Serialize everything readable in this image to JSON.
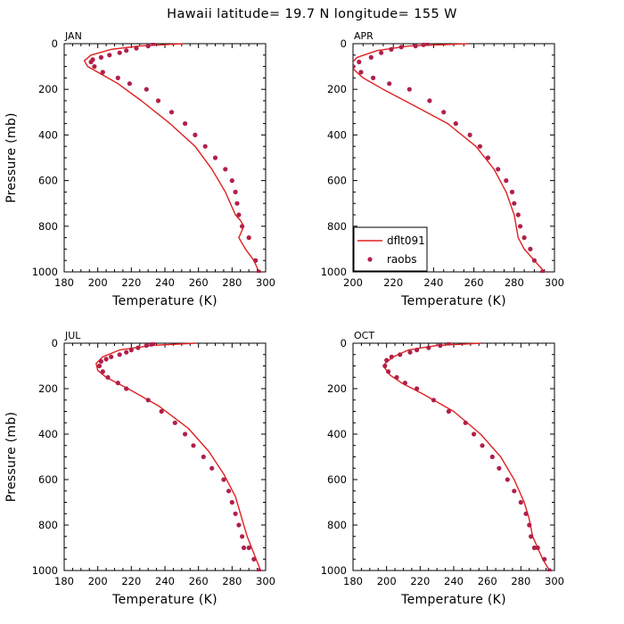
{
  "title": "Hawaii  latitude= 19.7 N longitude= 155 W",
  "colors": {
    "model_line": "#e02020",
    "raobs_marker": "#b0204a",
    "frame": "#000000"
  },
  "legend": {
    "items": [
      {
        "label": "dflt091",
        "kind": "line"
      },
      {
        "label": "raobs",
        "kind": "marker"
      }
    ],
    "panel": "APR",
    "placement": "bottom-left"
  },
  "chart_data": [
    {
      "type": "line",
      "panel": "JAN",
      "xlabel": "Temperature  (K)",
      "ylabel": "Pressure (mb)",
      "xlim": [
        180,
        300
      ],
      "ylim": [
        1000,
        0
      ],
      "xticks": [
        180,
        200,
        220,
        240,
        260,
        280,
        300
      ],
      "yticks": [
        0,
        200,
        400,
        600,
        800,
        1000
      ],
      "series": [
        {
          "name": "dflt091",
          "style": "line",
          "x": [
            251,
            225,
            208,
            196,
            192,
            194,
            200,
            212,
            226,
            243,
            258,
            268,
            276,
            282,
            285,
            287,
            284,
            288,
            293,
            296
          ],
          "y": [
            0,
            10,
            25,
            50,
            75,
            100,
            125,
            175,
            250,
            350,
            450,
            550,
            650,
            750,
            775,
            800,
            850,
            900,
            950,
            1000
          ]
        },
        {
          "name": "raobs",
          "style": "points",
          "x": [
            233,
            230,
            223,
            217,
            213,
            207,
            202,
            197,
            196,
            198,
            203,
            212,
            219,
            229,
            236,
            244,
            252,
            258,
            264,
            270,
            276,
            280,
            282,
            283,
            284,
            286,
            290,
            294,
            296
          ],
          "y": [
            0,
            10,
            20,
            30,
            40,
            50,
            60,
            70,
            80,
            100,
            125,
            150,
            175,
            200,
            250,
            300,
            350,
            400,
            450,
            500,
            550,
            600,
            650,
            700,
            750,
            800,
            850,
            950,
            1000
          ]
        }
      ]
    },
    {
      "type": "line",
      "panel": "APR",
      "xlabel": "Temperature  (K)",
      "ylabel": "",
      "xlim": [
        200,
        300
      ],
      "ylim": [
        1000,
        0
      ],
      "xticks": [
        200,
        220,
        240,
        260,
        280,
        300
      ],
      "yticks": [
        0,
        200,
        400,
        600,
        800,
        1000
      ],
      "series": [
        {
          "name": "dflt091",
          "style": "line",
          "x": [
            257,
            228,
            212,
            202,
            199,
            200,
            205,
            215,
            230,
            247,
            261,
            270,
            276,
            280,
            281,
            282,
            285,
            290,
            295
          ],
          "y": [
            0,
            10,
            30,
            60,
            90,
            110,
            150,
            200,
            270,
            350,
            450,
            550,
            650,
            750,
            800,
            850,
            900,
            950,
            1000
          ]
        },
        {
          "name": "raobs",
          "style": "points",
          "x": [
            237,
            235,
            231,
            224,
            219,
            214,
            209,
            203,
            200,
            204,
            210,
            218,
            228,
            238,
            245,
            251,
            258,
            263,
            267,
            272,
            276,
            279,
            280,
            282,
            283,
            285,
            288,
            290,
            294
          ],
          "y": [
            0,
            5,
            10,
            15,
            25,
            40,
            60,
            80,
            100,
            125,
            150,
            175,
            200,
            250,
            300,
            350,
            400,
            450,
            500,
            550,
            600,
            650,
            700,
            750,
            800,
            850,
            900,
            950,
            1000
          ]
        }
      ]
    },
    {
      "type": "line",
      "panel": "JUL",
      "xlabel": "Temperature  (K)",
      "ylabel": "Pressure (mb)",
      "xlim": [
        180,
        300
      ],
      "ylim": [
        1000,
        0
      ],
      "xticks": [
        180,
        200,
        220,
        240,
        260,
        280,
        300
      ],
      "yticks": [
        0,
        200,
        400,
        600,
        800,
        1000
      ],
      "series": [
        {
          "name": "dflt091",
          "style": "line",
          "x": [
            258,
            232,
            213,
            203,
            199,
            200,
            205,
            218,
            236,
            254,
            266,
            275,
            282,
            286,
            289,
            293,
            297
          ],
          "y": [
            0,
            10,
            30,
            60,
            90,
            120,
            150,
            200,
            275,
            375,
            475,
            575,
            675,
            775,
            850,
            925,
            1000
          ]
        },
        {
          "name": "raobs",
          "style": "points",
          "x": [
            233,
            232,
            229,
            224,
            220,
            217,
            213,
            208,
            205,
            202,
            201,
            203,
            206,
            212,
            217,
            230,
            238,
            246,
            252,
            257,
            263,
            268,
            275,
            278,
            280,
            282,
            284,
            286,
            287,
            290,
            293,
            296
          ],
          "y": [
            0,
            5,
            10,
            20,
            30,
            40,
            50,
            60,
            70,
            80,
            100,
            125,
            150,
            175,
            200,
            250,
            300,
            350,
            400,
            450,
            500,
            550,
            600,
            650,
            700,
            750,
            800,
            850,
            900,
            900,
            950,
            1000
          ]
        }
      ]
    },
    {
      "type": "line",
      "panel": "OCT",
      "xlabel": "Temperature  (K)",
      "ylabel": "",
      "xlim": [
        180,
        300
      ],
      "ylim": [
        1000,
        0
      ],
      "xticks": [
        180,
        200,
        220,
        240,
        260,
        280,
        300
      ],
      "yticks": [
        0,
        200,
        400,
        600,
        800,
        1000
      ],
      "series": [
        {
          "name": "dflt091",
          "style": "line",
          "x": [
            256,
            230,
            213,
            204,
            199,
            199,
            202,
            209,
            222,
            240,
            256,
            268,
            276,
            282,
            285,
            287,
            290,
            293,
            297
          ],
          "y": [
            0,
            10,
            30,
            60,
            90,
            110,
            140,
            175,
            225,
            300,
            400,
            500,
            600,
            700,
            775,
            850,
            900,
            950,
            1000
          ]
        },
        {
          "name": "raobs",
          "style": "points",
          "x": [
            237,
            232,
            225,
            218,
            214,
            208,
            203,
            200,
            199,
            201,
            206,
            211,
            218,
            228,
            237,
            247,
            252,
            257,
            263,
            267,
            272,
            276,
            280,
            283,
            285,
            286,
            288,
            290,
            294,
            297
          ],
          "y": [
            0,
            10,
            20,
            30,
            40,
            50,
            60,
            75,
            100,
            125,
            150,
            175,
            200,
            250,
            300,
            350,
            400,
            450,
            500,
            550,
            600,
            650,
            700,
            750,
            800,
            850,
            900,
            900,
            950,
            1000
          ]
        }
      ]
    }
  ]
}
